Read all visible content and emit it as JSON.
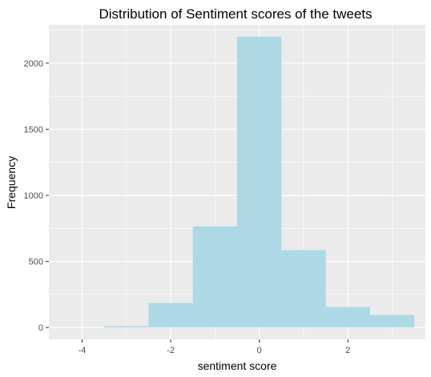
{
  "chart_data": {
    "type": "bar",
    "subtype": "histogram",
    "title": "Distribution of Sentiment scores of the tweets",
    "xlabel": "sentiment score",
    "ylabel": "Frequency",
    "xlim": [
      -4.75,
      3.75
    ],
    "ylim": [
      -90,
      2290
    ],
    "x_ticks": [
      -4,
      -2,
      0,
      2
    ],
    "y_ticks": [
      0,
      500,
      1000,
      1500,
      2000
    ],
    "x_tick_labels": [
      "-4",
      "-2",
      "0",
      "2"
    ],
    "y_tick_labels": [
      "0",
      "500",
      "1000",
      "1500",
      "2000"
    ],
    "grid": true,
    "bar_color": "#add8e6",
    "panel_background": "#ebebeb",
    "grid_color": "#ffffff",
    "bins": [
      {
        "x_start": -4.5,
        "x_end": -3.5,
        "count": 0
      },
      {
        "x_start": -3.5,
        "x_end": -2.5,
        "count": 10
      },
      {
        "x_start": -2.5,
        "x_end": -1.5,
        "count": 185
      },
      {
        "x_start": -1.5,
        "x_end": -0.5,
        "count": 765
      },
      {
        "x_start": -0.5,
        "x_end": 0.5,
        "count": 2200
      },
      {
        "x_start": 0.5,
        "x_end": 1.5,
        "count": 585
      },
      {
        "x_start": 1.5,
        "x_end": 2.5,
        "count": 155
      },
      {
        "x_start": 2.5,
        "x_end": 3.5,
        "count": 95
      }
    ]
  }
}
